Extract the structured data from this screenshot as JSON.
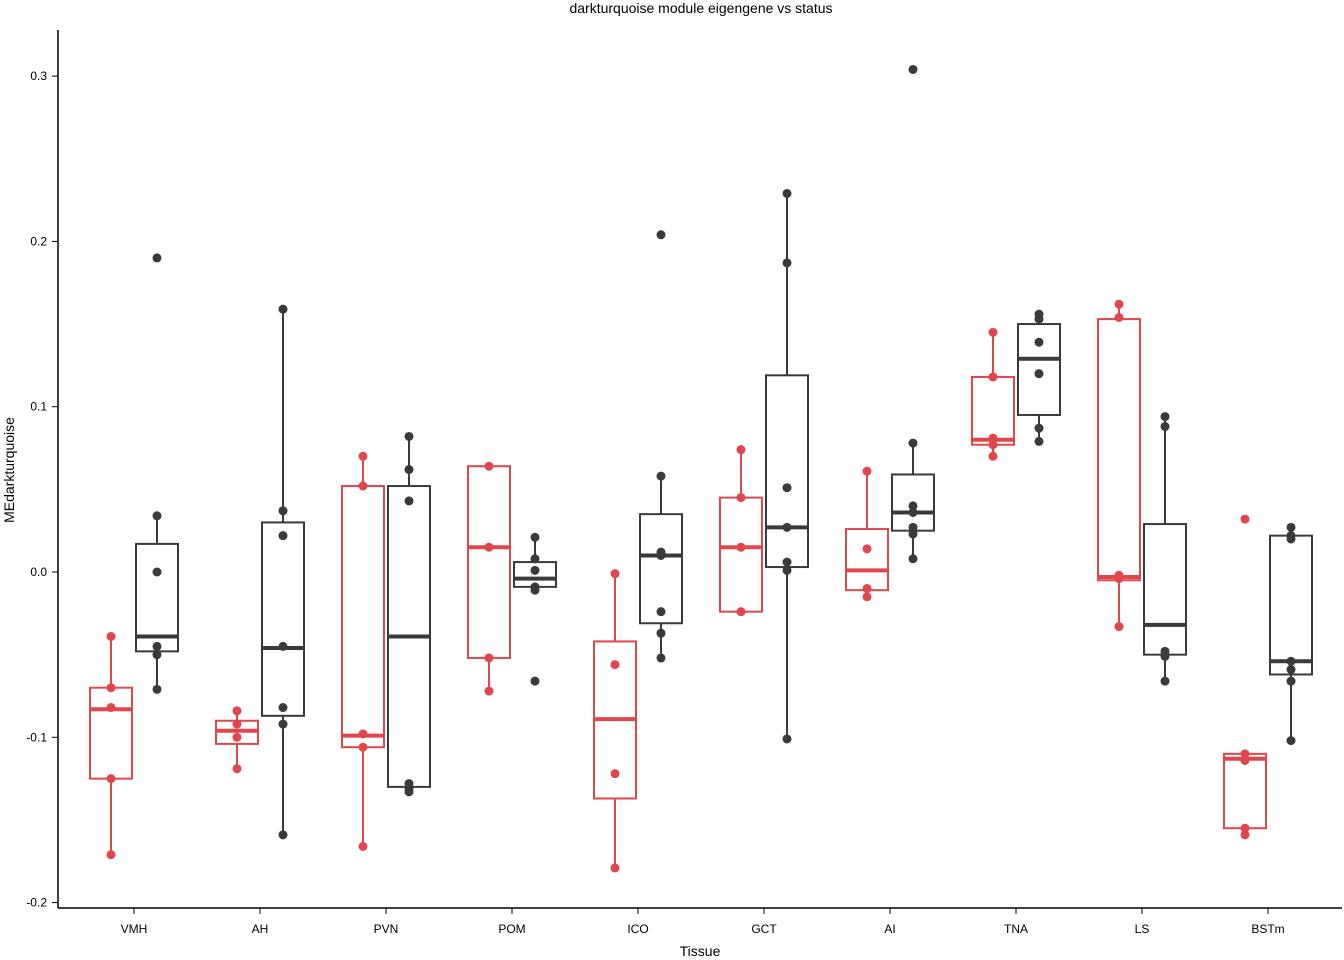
{
  "chart_data": {
    "type": "boxplot",
    "title": "darkturquoise module eigengene vs status",
    "xlabel": "Tissue",
    "ylabel": "MEdarkturquoise",
    "ylim": [
      -0.2,
      0.33
    ],
    "yticks": [
      -0.2,
      -0.1,
      0.0,
      0.1,
      0.2,
      0.3
    ],
    "ytick_labels": [
      "-0.2",
      "-0.1",
      "0.0",
      "0.1",
      "0.2",
      "0.3"
    ],
    "categories": [
      "VMH",
      "AH",
      "PVN",
      "POM",
      "ICO",
      "GCT",
      "AI",
      "TNA",
      "LS",
      "BSTm"
    ],
    "grid": false,
    "legend": "none",
    "series": [
      {
        "color": "#e0474c",
        "boxes": [
          {
            "q1": -0.125,
            "median": -0.083,
            "q3": -0.07,
            "wlo": -0.171,
            "whi": -0.039,
            "points": [
              -0.039,
              -0.07,
              -0.082,
              -0.125,
              -0.171
            ]
          },
          {
            "q1": -0.104,
            "median": -0.096,
            "q3": -0.09,
            "wlo": -0.119,
            "whi": -0.084,
            "points": [
              -0.084,
              -0.092,
              -0.1,
              -0.119
            ]
          },
          {
            "q1": -0.106,
            "median": -0.099,
            "q3": 0.052,
            "wlo": -0.166,
            "whi": 0.07,
            "points": [
              0.07,
              0.052,
              -0.098,
              -0.106,
              -0.166
            ]
          },
          {
            "q1": -0.052,
            "median": 0.015,
            "q3": 0.064,
            "wlo": -0.072,
            "whi": 0.064,
            "points": [
              0.064,
              0.015,
              -0.052,
              -0.072
            ]
          },
          {
            "q1": -0.137,
            "median": -0.089,
            "q3": -0.042,
            "wlo": -0.179,
            "whi": -0.001,
            "points": [
              -0.001,
              -0.056,
              -0.122,
              -0.179
            ]
          },
          {
            "q1": -0.024,
            "median": 0.015,
            "q3": 0.045,
            "wlo": -0.024,
            "whi": 0.074,
            "points": [
              0.074,
              0.045,
              0.015,
              -0.024
            ]
          },
          {
            "q1": -0.011,
            "median": 0.001,
            "q3": 0.026,
            "wlo": -0.015,
            "whi": 0.061,
            "points": [
              0.061,
              0.014,
              -0.01,
              -0.015
            ]
          },
          {
            "q1": 0.077,
            "median": 0.08,
            "q3": 0.118,
            "wlo": 0.07,
            "whi": 0.145,
            "points": [
              0.145,
              0.118,
              0.081,
              0.077,
              0.07
            ]
          },
          {
            "q1": -0.005,
            "median": -0.003,
            "q3": 0.153,
            "wlo": -0.033,
            "whi": 0.162,
            "points": [
              0.162,
              0.154,
              -0.002,
              -0.004,
              -0.033
            ]
          },
          {
            "q1": -0.155,
            "median": -0.113,
            "q3": -0.11,
            "wlo": -0.159,
            "whi": -0.11,
            "points": [
              0.032,
              -0.11,
              -0.114,
              -0.155,
              -0.159
            ]
          }
        ]
      },
      {
        "color": "#3a3a3a",
        "boxes": [
          {
            "q1": -0.048,
            "median": -0.039,
            "q3": 0.017,
            "wlo": -0.071,
            "whi": 0.034,
            "points": [
              0.19,
              0.034,
              0.0,
              -0.045,
              -0.05,
              -0.071
            ]
          },
          {
            "q1": -0.087,
            "median": -0.046,
            "q3": 0.03,
            "wlo": -0.159,
            "whi": 0.159,
            "points": [
              0.159,
              0.037,
              0.022,
              -0.045,
              -0.082,
              -0.092,
              -0.159
            ]
          },
          {
            "q1": -0.13,
            "median": -0.039,
            "q3": 0.052,
            "wlo": -0.133,
            "whi": 0.082,
            "points": [
              0.082,
              0.062,
              0.043,
              -0.128,
              -0.131,
              -0.133
            ]
          },
          {
            "q1": -0.009,
            "median": -0.004,
            "q3": 0.006,
            "wlo": -0.011,
            "whi": 0.021,
            "points": [
              0.021,
              0.008,
              0.001,
              -0.009,
              -0.011,
              -0.066
            ]
          },
          {
            "q1": -0.031,
            "median": 0.01,
            "q3": 0.035,
            "wlo": -0.052,
            "whi": 0.058,
            "points": [
              0.204,
              0.058,
              0.012,
              0.01,
              -0.024,
              -0.037,
              -0.052
            ]
          },
          {
            "q1": 0.003,
            "median": 0.027,
            "q3": 0.119,
            "wlo": -0.101,
            "whi": 0.229,
            "points": [
              0.229,
              0.187,
              0.051,
              0.027,
              0.006,
              0.001,
              -0.101
            ]
          },
          {
            "q1": 0.025,
            "median": 0.036,
            "q3": 0.059,
            "wlo": 0.008,
            "whi": 0.078,
            "points": [
              0.304,
              0.078,
              0.04,
              0.036,
              0.027,
              0.023,
              0.008
            ]
          },
          {
            "q1": 0.095,
            "median": 0.129,
            "q3": 0.15,
            "wlo": 0.079,
            "whi": 0.156,
            "points": [
              0.156,
              0.153,
              0.139,
              0.12,
              0.087,
              0.079
            ]
          },
          {
            "q1": -0.05,
            "median": -0.032,
            "q3": 0.029,
            "wlo": -0.066,
            "whi": 0.094,
            "points": [
              0.094,
              0.088,
              -0.048,
              -0.051,
              -0.066
            ]
          },
          {
            "q1": -0.062,
            "median": -0.054,
            "q3": 0.022,
            "wlo": -0.102,
            "whi": 0.027,
            "points": [
              0.027,
              0.022,
              0.02,
              -0.054,
              -0.059,
              -0.066,
              -0.102
            ]
          }
        ]
      }
    ]
  }
}
